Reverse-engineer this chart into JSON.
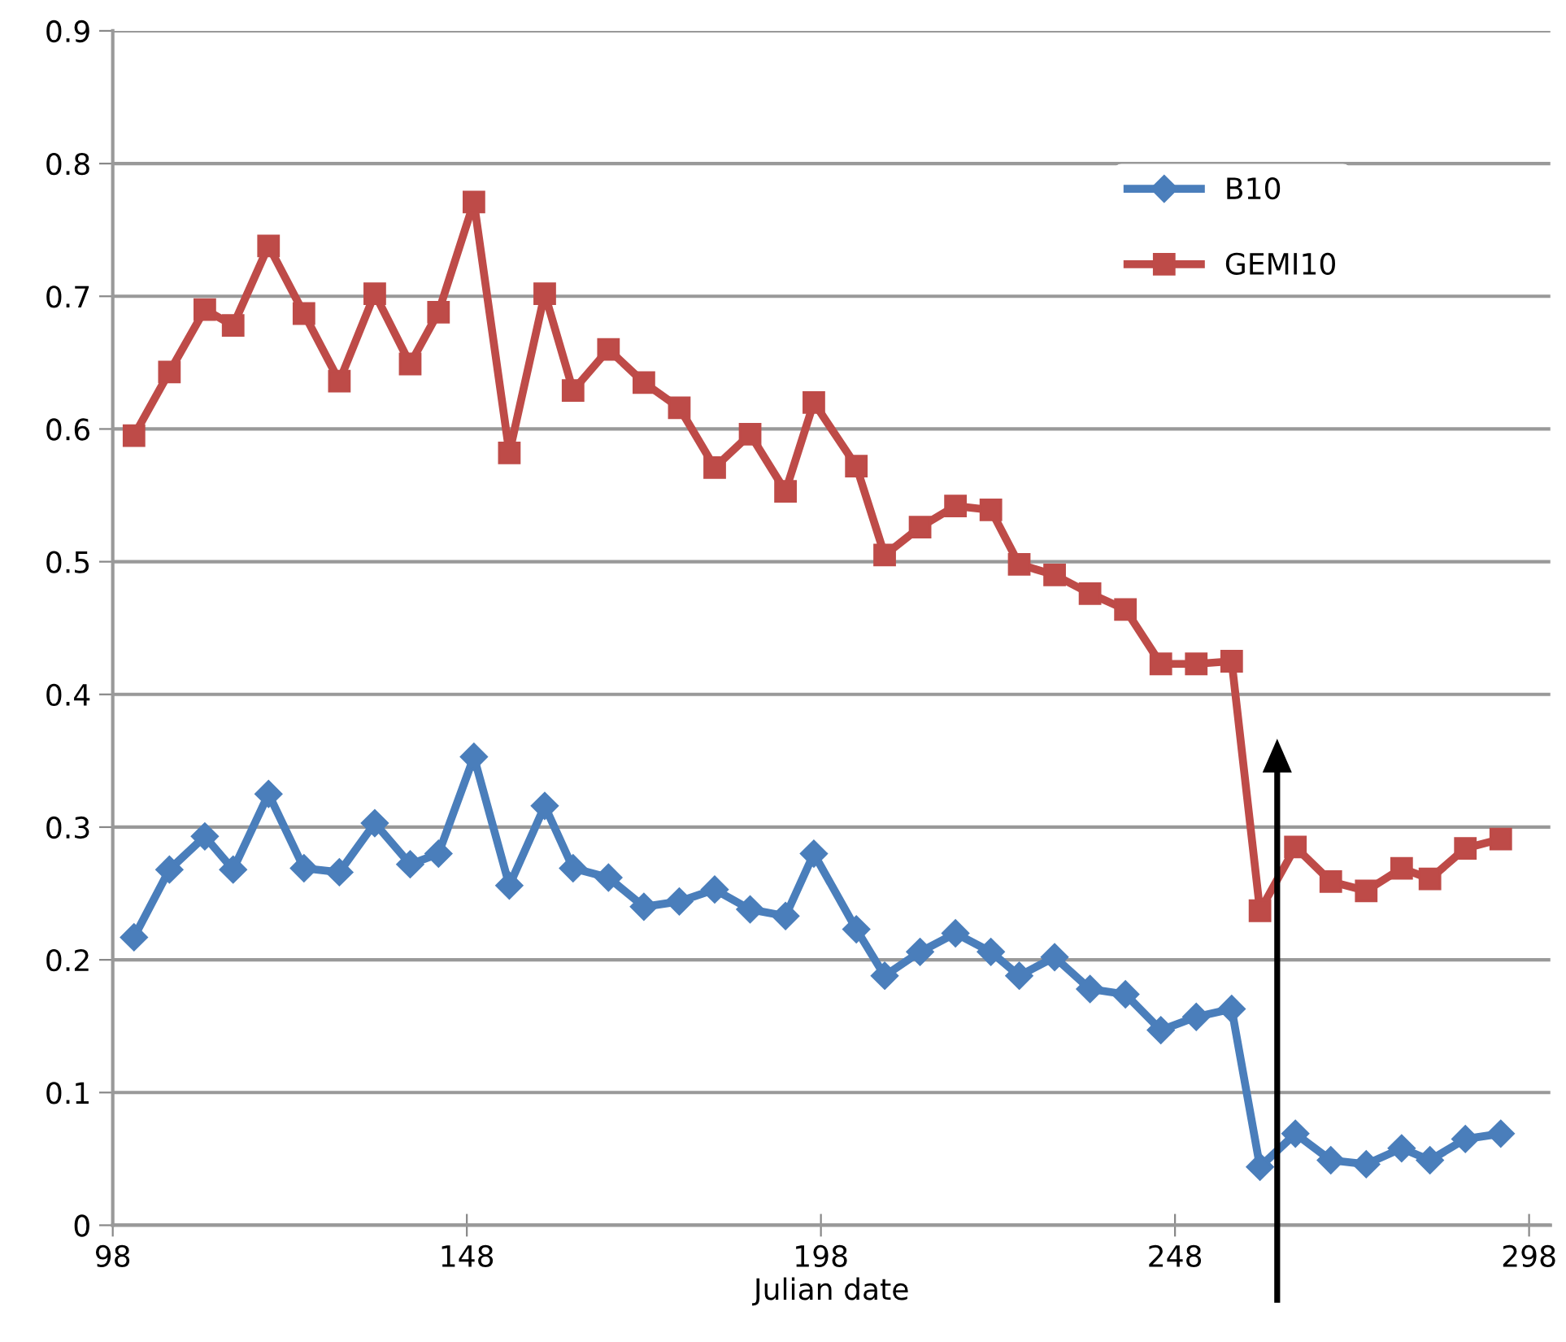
{
  "chart_data": {
    "type": "line",
    "xlabel": "Julian date",
    "x": [
      101,
      106,
      111,
      115,
      120,
      125,
      130,
      135,
      140,
      144,
      149,
      154,
      159,
      163,
      168,
      173,
      178,
      183,
      188,
      193,
      197,
      203,
      207,
      212,
      217,
      222,
      226,
      231,
      236,
      241,
      246,
      251,
      256,
      260,
      265,
      270,
      275,
      280,
      284,
      289,
      294
    ],
    "series": [
      {
        "name": "B10",
        "color": "#4a7ebb",
        "marker": "diamond",
        "values": [
          0.217,
          0.268,
          0.293,
          0.268,
          0.325,
          0.269,
          0.266,
          0.303,
          0.272,
          0.28,
          0.353,
          0.256,
          0.316,
          0.269,
          0.262,
          0.24,
          0.244,
          0.253,
          0.238,
          0.233,
          0.28,
          0.223,
          0.188,
          0.206,
          0.22,
          0.206,
          0.188,
          0.202,
          0.178,
          0.174,
          0.147,
          0.157,
          0.163,
          0.044,
          0.069,
          0.049,
          0.046,
          0.058,
          0.049,
          0.065,
          0.069
        ]
      },
      {
        "name": "GEMI10",
        "color": "#be4b48",
        "marker": "square",
        "values": [
          0.595,
          0.643,
          0.69,
          0.678,
          0.738,
          0.687,
          0.636,
          0.702,
          0.649,
          0.688,
          0.771,
          0.582,
          0.702,
          0.629,
          0.66,
          0.635,
          0.616,
          0.571,
          0.596,
          0.553,
          0.62,
          0.572,
          0.505,
          0.526,
          0.542,
          0.539,
          0.498,
          0.49,
          0.476,
          0.464,
          0.423,
          0.423,
          0.425,
          0.237,
          0.285,
          0.259,
          0.252,
          0.269,
          0.261,
          0.284,
          0.291
        ]
      }
    ],
    "xlim": [
      98,
      301
    ],
    "xticks": [
      98,
      148,
      198,
      248,
      298
    ],
    "ylim": [
      0,
      0.9
    ],
    "yticks": [
      0,
      0.1,
      0.2,
      0.3,
      0.4,
      0.5,
      0.6,
      0.7,
      0.8,
      0.9
    ],
    "grid": "y",
    "legend": "top right",
    "line_style": "solid"
  }
}
